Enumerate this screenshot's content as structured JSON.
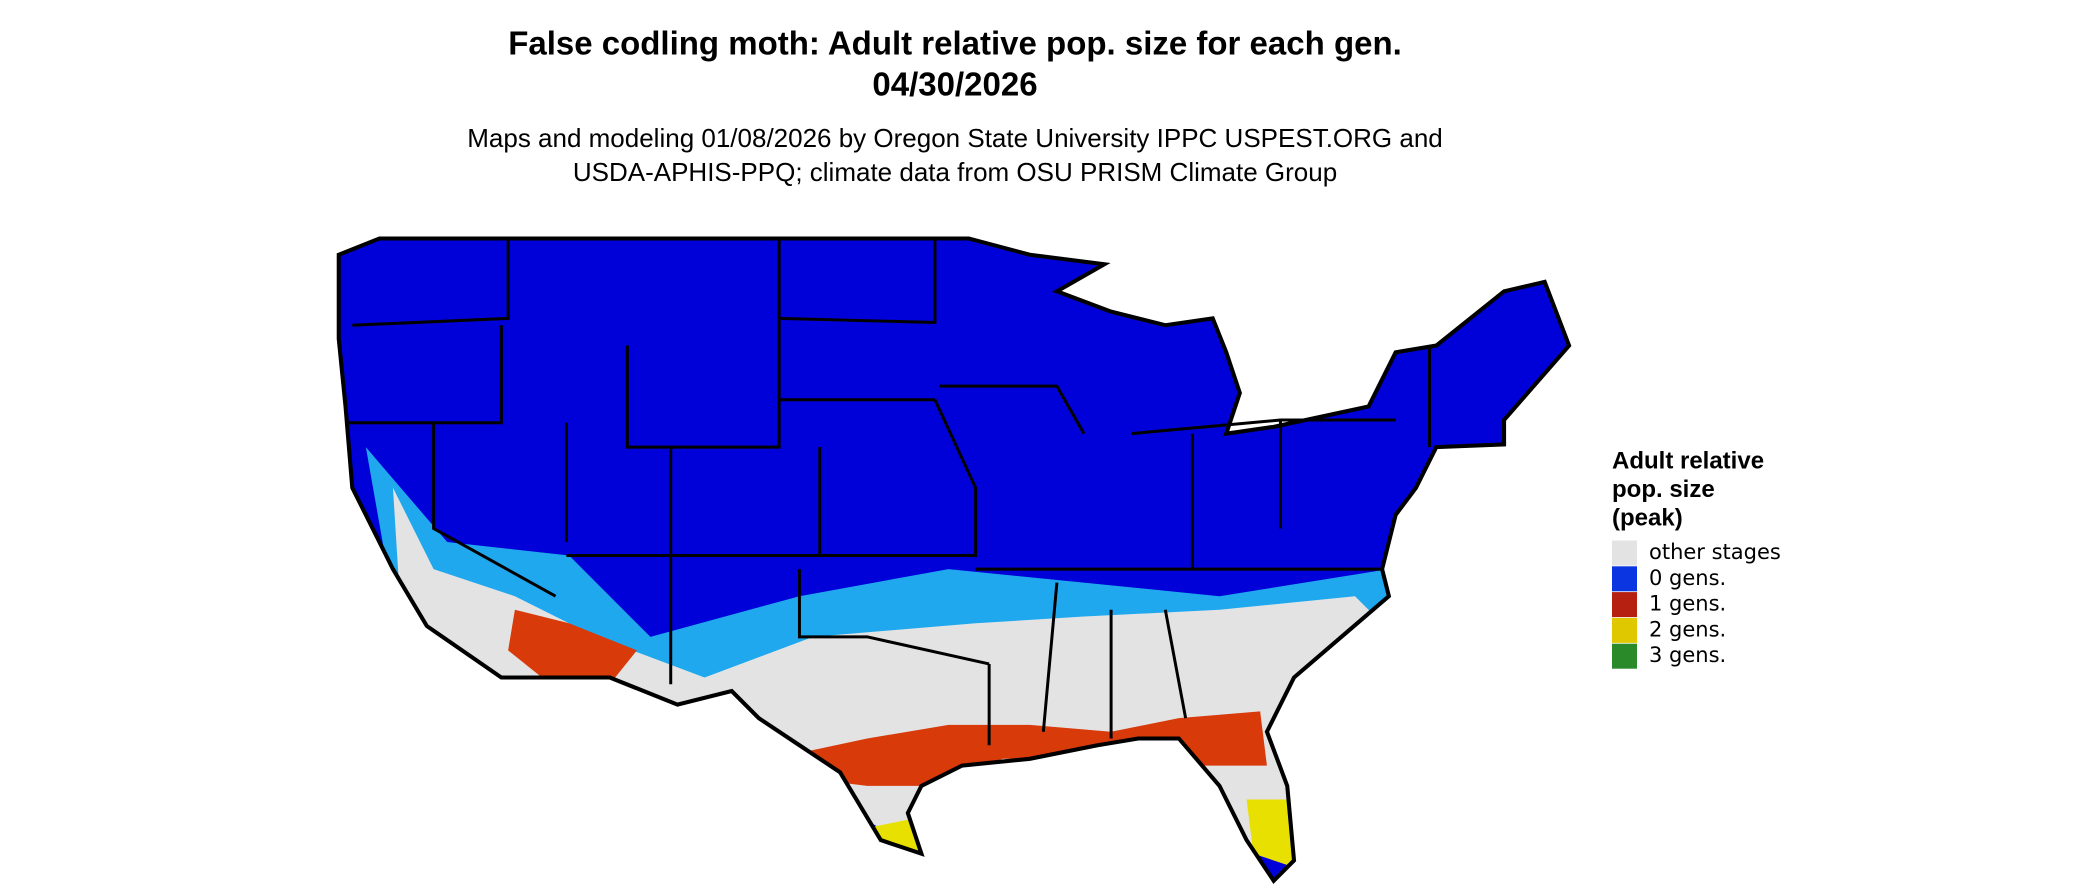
{
  "header": {
    "title": "False codling moth: Adult relative pop. size for each gen.",
    "date": "04/30/2026",
    "subtitle_lines": [
      "Maps and modeling 01/08/2026 by Oregon State University IPPC USPEST.ORG and",
      "USDA-APHIS-PPQ; climate data from OSU PRISM Climate Group"
    ]
  },
  "legend": {
    "title_lines": [
      "Adult relative",
      "pop. size",
      "(peak)"
    ],
    "items": [
      {
        "label": "other stages",
        "color": "#e3e3e3"
      },
      {
        "label": "0 gens.",
        "color": "#0a35e0"
      },
      {
        "label": "1 gens.",
        "color": "#b52010"
      },
      {
        "label": "2 gens.",
        "color": "#e0c800"
      },
      {
        "label": "3 gens.",
        "color": "#2a8a2a"
      }
    ]
  }
}
